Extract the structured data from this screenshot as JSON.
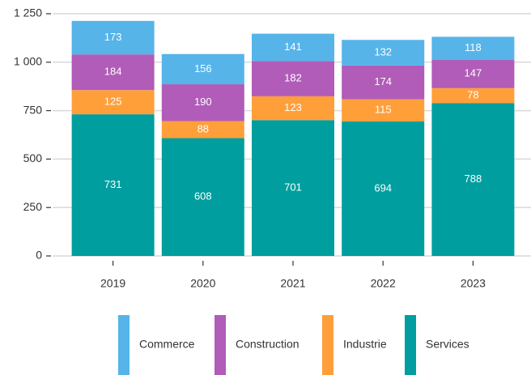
{
  "chart_data": {
    "type": "stacked_bar",
    "categories": [
      "2019",
      "2020",
      "2021",
      "2022",
      "2023"
    ],
    "series": [
      {
        "name": "Commerce",
        "color": "#56b4e9",
        "values": [
          173,
          156,
          141,
          132,
          118
        ]
      },
      {
        "name": "Construction",
        "color": "#b05cb8",
        "values": [
          184,
          190,
          182,
          174,
          147
        ]
      },
      {
        "name": "Industrie",
        "color": "#ff9f3a",
        "values": [
          125,
          88,
          123,
          115,
          78
        ]
      },
      {
        "name": "Services",
        "color": "#009e9e",
        "values": [
          731,
          608,
          701,
          694,
          788
        ]
      }
    ],
    "ylim": [
      0,
      1300
    ],
    "yticks": [
      0,
      250,
      500,
      750,
      {
        "value": 1000,
        "label": "1 000"
      },
      {
        "value": 1250,
        "label": "1 250"
      }
    ],
    "grid": true,
    "legend": "bottom"
  }
}
